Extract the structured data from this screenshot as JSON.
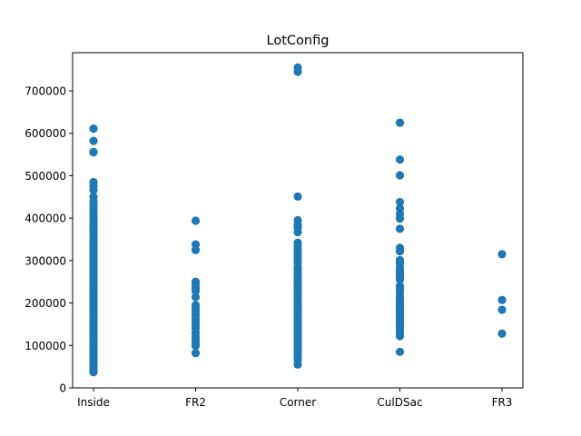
{
  "chart_data": {
    "type": "scatter",
    "title": "LotConfig",
    "xlabel": "",
    "ylabel": "",
    "categories": [
      "Inside",
      "FR2",
      "Corner",
      "CulDSac",
      "FR3"
    ],
    "ylim": [
      0,
      790000
    ],
    "yticks": [
      0,
      100000,
      200000,
      300000,
      400000,
      500000,
      600000,
      700000
    ],
    "ytick_labels": [
      "0",
      "100000",
      "200000",
      "300000",
      "400000",
      "500000",
      "600000",
      "700000"
    ],
    "grid": false,
    "marker_color": "#1f77b4",
    "series": [
      {
        "category": "Inside",
        "values": [
          611000,
          582000,
          556000,
          555000,
          485000,
          475000,
          466000,
          450000,
          440000,
          430000,
          424000,
          415000,
          410000,
          402000,
          395000,
          390000,
          383000,
          378000,
          372000,
          365000,
          359000,
          352000,
          346000,
          340000,
          335000,
          328000,
          322000,
          316000,
          310000,
          305000,
          300000,
          295000,
          290000,
          285000,
          280000,
          275000,
          270000,
          265000,
          260000,
          255000,
          250000,
          245000,
          240000,
          235000,
          230000,
          225000,
          220000,
          215000,
          210000,
          205000,
          200000,
          195000,
          190000,
          185000,
          180000,
          175000,
          170000,
          165000,
          160000,
          155000,
          150000,
          145000,
          140000,
          135000,
          130000,
          125000,
          120000,
          115000,
          110000,
          105000,
          100000,
          95000,
          90000,
          85000,
          80000,
          75000,
          70000,
          65000,
          60000,
          55000,
          50000,
          45000,
          40000,
          37000
        ]
      },
      {
        "category": "FR2",
        "values": [
          394000,
          338000,
          325000,
          250000,
          244000,
          235000,
          228000,
          214000,
          195000,
          188000,
          180000,
          172000,
          163000,
          155000,
          147000,
          140000,
          130000,
          121000,
          114000,
          107000,
          99000,
          82000
        ]
      },
      {
        "category": "Corner",
        "values": [
          755000,
          745000,
          451000,
          395000,
          384000,
          378000,
          367000,
          342000,
          335000,
          327000,
          320000,
          311000,
          302000,
          295000,
          285000,
          278000,
          270000,
          262000,
          255000,
          248000,
          242000,
          235000,
          228000,
          221000,
          215000,
          208000,
          201000,
          195000,
          189000,
          183000,
          177000,
          171000,
          165000,
          159000,
          153000,
          147000,
          141000,
          135000,
          129000,
          123000,
          117000,
          111000,
          105000,
          99000,
          93000,
          87000,
          80000,
          73000,
          66000,
          55000
        ]
      },
      {
        "category": "CulDSac",
        "values": [
          625000,
          538000,
          501000,
          438000,
          423000,
          410000,
          399000,
          375000,
          330000,
          322000,
          301000,
          295000,
          285000,
          277000,
          270000,
          262000,
          255000,
          240000,
          232000,
          224000,
          215000,
          208000,
          200000,
          193000,
          186000,
          179000,
          172000,
          165000,
          158000,
          151000,
          144000,
          137000,
          130000,
          122000,
          85000
        ]
      },
      {
        "category": "FR3",
        "values": [
          315000,
          207000,
          184000,
          128000
        ]
      }
    ]
  }
}
